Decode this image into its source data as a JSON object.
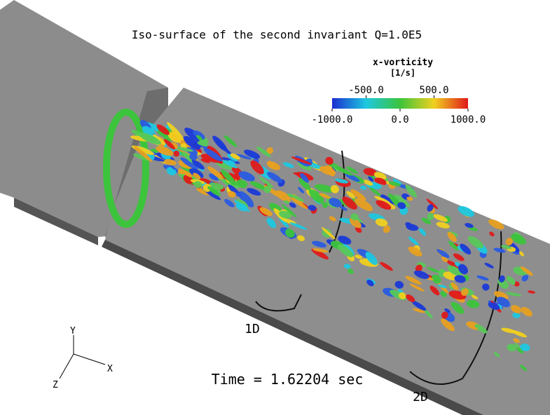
{
  "title": "Iso-surface of the second invariant Q=1.0E5",
  "colorbar": {
    "label": "x-vorticity",
    "unit": "[1/s]",
    "range": [
      -1000,
      1000
    ],
    "ticks": [
      {
        "value": -1000,
        "label": "-1000.0"
      },
      {
        "value": -500,
        "label": "-500.0"
      },
      {
        "value": 0,
        "label": "0.0"
      },
      {
        "value": 500,
        "label": "500.0"
      },
      {
        "value": 1000,
        "label": "1000.0"
      }
    ]
  },
  "time": "Time = 1.62204 sec",
  "markers": [
    "1D",
    "2D"
  ],
  "axes": {
    "x": "X",
    "y": "Y",
    "z": "Z"
  }
}
